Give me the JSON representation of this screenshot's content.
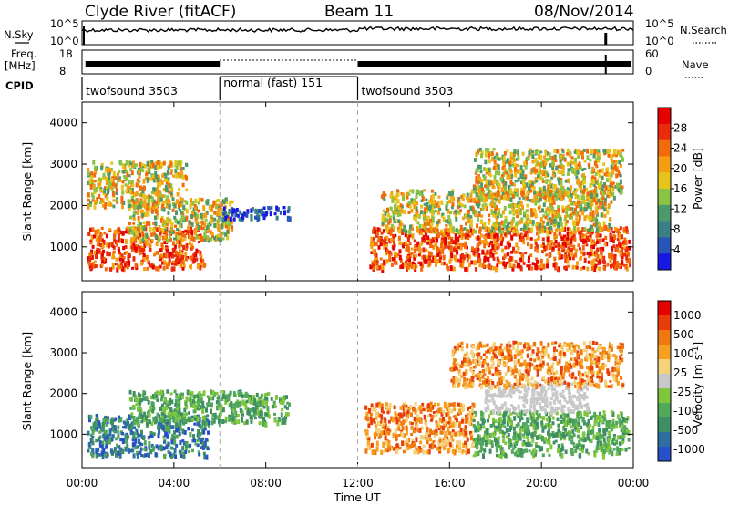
{
  "header": {
    "station": "Clyde River (fitACF)",
    "beam": "Beam 11",
    "date": "08/Nov/2014"
  },
  "top_panel": {
    "left_label": "N.Sky",
    "right_label": "N.Search",
    "left_ticks": [
      "10^5",
      "10^0"
    ],
    "right_ticks": [
      "10^5",
      "10^0"
    ]
  },
  "freq_panel": {
    "left_label_1": "Freq.",
    "left_label_2": "[MHz]",
    "left_ticks": [
      "18",
      "8"
    ],
    "right_label": "Nave",
    "right_ticks": [
      "60",
      "0"
    ]
  },
  "cpid": {
    "label": "CPID",
    "segments": [
      {
        "name": "twofsound 3503",
        "start_h": 0,
        "end_h": 6
      },
      {
        "name": "normal (fast) 151",
        "start_h": 6,
        "end_h": 12
      },
      {
        "name": "twofsound 3503",
        "start_h": 12,
        "end_h": 24
      }
    ]
  },
  "x_axis": {
    "label": "Time UT",
    "ticks": [
      "00:00",
      "04:00",
      "08:00",
      "12:00",
      "16:00",
      "20:00",
      "00:00"
    ],
    "range_h": [
      0,
      24
    ]
  },
  "chart_data": [
    {
      "type": "heatmap",
      "title": "",
      "xlabel": "Time UT",
      "ylabel": "Slant Range [km]",
      "ylim": [
        180,
        4500
      ],
      "yticks": [
        1000,
        2000,
        3000,
        4000
      ],
      "colorbar": {
        "label": "Power [dB]",
        "range": [
          0,
          32
        ],
        "ticks": [
          "4",
          "8",
          "12",
          "16",
          "20",
          "24",
          "28"
        ],
        "colors": [
          "#1818e6",
          "#2a55b8",
          "#3a7f85",
          "#4c9a6a",
          "#8ac443",
          "#e6c419",
          "#f59e12",
          "#f26a0c",
          "#ea2a0a",
          "#e60000"
        ]
      },
      "regions": [
        {
          "t": [
            0.2,
            5.3
          ],
          "r": [
            500,
            1500
          ],
          "val": "high"
        },
        {
          "t": [
            2.0,
            6.5
          ],
          "r": [
            1200,
            2200
          ],
          "val": "mid"
        },
        {
          "t": [
            6.0,
            9.0
          ],
          "r": [
            1700,
            2000
          ],
          "val": "low"
        },
        {
          "t": [
            0.2,
            4.5
          ],
          "r": [
            2000,
            3100
          ],
          "val": "mid"
        },
        {
          "t": [
            12.5,
            23.8
          ],
          "r": [
            500,
            1500
          ],
          "val": "high"
        },
        {
          "t": [
            13.0,
            23.0
          ],
          "r": [
            1400,
            2400
          ],
          "val": "mid"
        },
        {
          "t": [
            17.0,
            23.5
          ],
          "r": [
            2200,
            3400
          ],
          "val": "mid"
        }
      ]
    },
    {
      "type": "heatmap",
      "title": "",
      "xlabel": "Time UT",
      "ylabel": "Slant Range [km]",
      "ylim": [
        180,
        4500
      ],
      "yticks": [
        1000,
        2000,
        3000,
        4000
      ],
      "colorbar": {
        "label": "Velocity [m s^-1]",
        "ticks": [
          "1000",
          "500",
          "100",
          "25",
          "-25",
          "-100",
          "-500",
          "-1000"
        ],
        "colors": [
          "#2850c8",
          "#2d6fa0",
          "#3e8f64",
          "#52a85a",
          "#7ec63c",
          "#c8c8c8",
          "#f3d27a",
          "#f6a020",
          "#f07810",
          "#ea3c0a",
          "#e60000"
        ]
      },
      "regions": [
        {
          "t": [
            0.2,
            5.5
          ],
          "r": [
            500,
            1500
          ],
          "val": "neg-green"
        },
        {
          "t": [
            2.0,
            9.0
          ],
          "r": [
            1300,
            2100
          ],
          "val": "green"
        },
        {
          "t": [
            12.3,
            17.0
          ],
          "r": [
            600,
            1800
          ],
          "val": "orange"
        },
        {
          "t": [
            17.0,
            23.8
          ],
          "r": [
            500,
            1600
          ],
          "val": "green"
        },
        {
          "t": [
            17.5,
            22.0
          ],
          "r": [
            1600,
            2300
          ],
          "val": "grey"
        },
        {
          "t": [
            16.0,
            23.5
          ],
          "r": [
            2200,
            3300
          ],
          "val": "orange"
        }
      ]
    }
  ]
}
